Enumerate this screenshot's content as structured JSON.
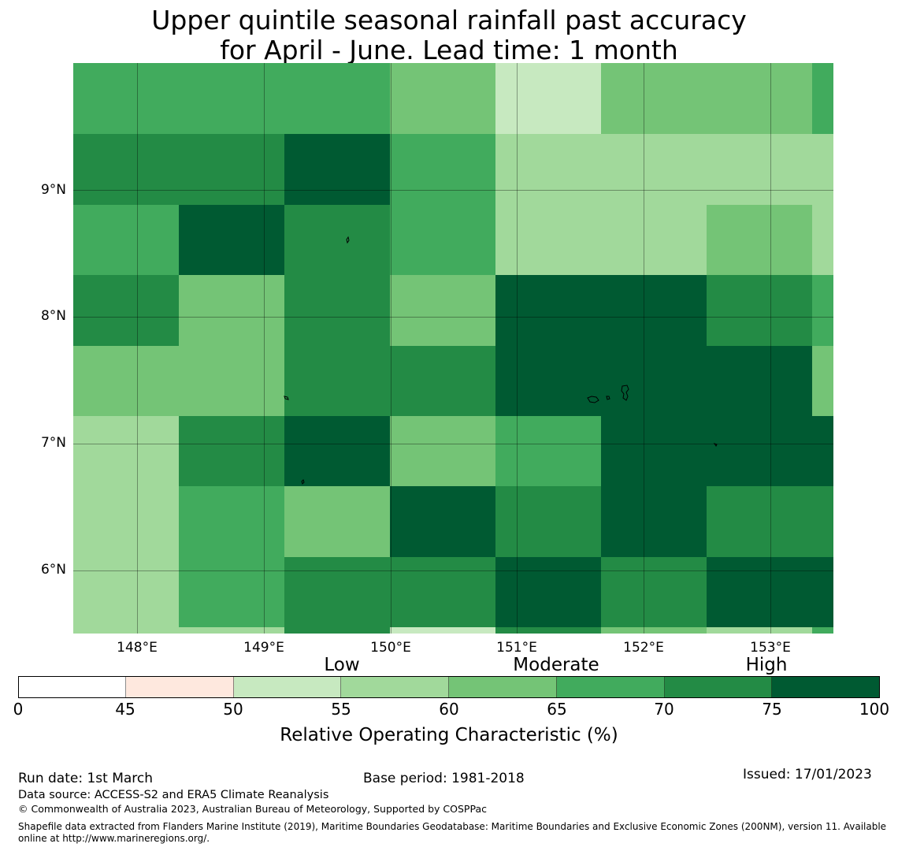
{
  "title": {
    "line1": "Upper quintile seasonal rainfall past accuracy",
    "line2": "for April - June. Lead time: 1 month"
  },
  "map": {
    "lat_labels": [
      "9°N",
      "8°N",
      "7°N",
      "6°N"
    ],
    "lon_labels": [
      "148°E",
      "149°E",
      "150°E",
      "151°E",
      "152°E",
      "153°E"
    ],
    "grid_cols": 8,
    "grid_rows": 8,
    "grid_values_percent": [
      [
        65,
        65,
        65,
        60,
        50,
        60,
        60,
        65
      ],
      [
        70,
        70,
        75,
        65,
        55,
        55,
        55,
        55
      ],
      [
        65,
        75,
        70,
        65,
        55,
        55,
        60,
        55
      ],
      [
        70,
        60,
        70,
        60,
        75,
        75,
        70,
        65
      ],
      [
        60,
        60,
        70,
        70,
        75,
        75,
        75,
        60
      ],
      [
        55,
        70,
        75,
        60,
        65,
        75,
        75,
        75
      ],
      [
        55,
        65,
        60,
        75,
        70,
        75,
        70,
        70
      ],
      [
        55,
        65,
        70,
        70,
        75,
        70,
        75,
        75
      ]
    ],
    "bottom_strip_values_percent": [
      55,
      55,
      70,
      50,
      70,
      60,
      55,
      65
    ]
  },
  "legend": {
    "category_labels": {
      "low": "Low",
      "moderate": "Moderate",
      "high": "High"
    },
    "ticks": [
      "0",
      "45",
      "50",
      "55",
      "60",
      "65",
      "70",
      "75",
      "100"
    ],
    "title": "Relative Operating Characteristic (%)",
    "segments": [
      {
        "range": [
          0,
          45
        ],
        "color": "#ffffff"
      },
      {
        "range": [
          45,
          50
        ],
        "color": "#fee8de"
      },
      {
        "range": [
          50,
          55
        ],
        "color": "#c7e9c0"
      },
      {
        "range": [
          55,
          60
        ],
        "color": "#a1d99b"
      },
      {
        "range": [
          60,
          65
        ],
        "color": "#74c476"
      },
      {
        "range": [
          65,
          70
        ],
        "color": "#41ab5d"
      },
      {
        "range": [
          70,
          75
        ],
        "color": "#238b45"
      },
      {
        "range": [
          75,
          100
        ],
        "color": "#005a32"
      }
    ]
  },
  "footer": {
    "run_date": "Run date: 1st March",
    "base_period": "Base period: 1981-2018",
    "issued": "Issued: 17/01/2023",
    "data_source": "Data source: ACCESS-S2 and ERA5 Climate Reanalysis",
    "copyright": "© Commonwealth of Australia 2023, Australian Bureau of Meteorology, Supported by COSPPac",
    "shapefile": "Shapefile data extracted from Flanders Marine Institute (2019), Maritime Boundaries Geodatabase: Maritime Boundaries and Exclusive Economic Zones (200NM), version 11. Available online at http://www.marineregions.org/."
  }
}
